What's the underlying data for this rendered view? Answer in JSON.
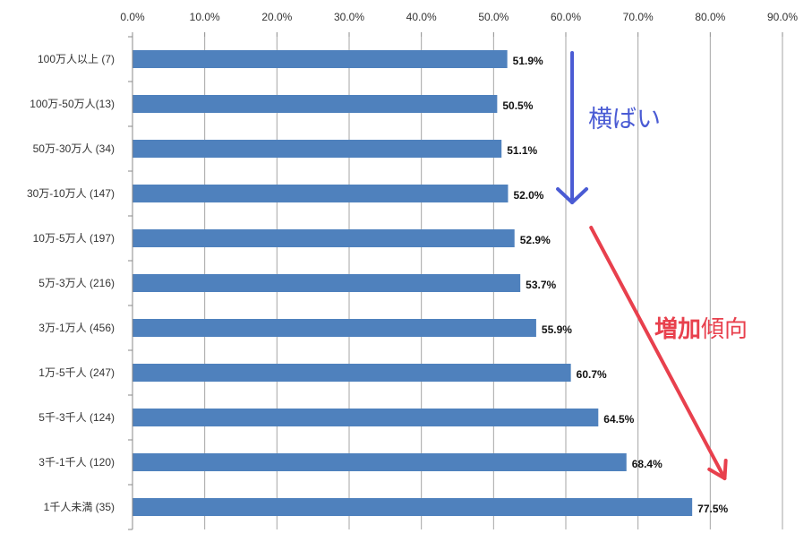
{
  "chart_data": {
    "type": "bar",
    "orientation": "horizontal",
    "title": "",
    "xlabel": "",
    "ylabel": "",
    "xlim": [
      0,
      90
    ],
    "x_ticks": [
      "0.0%",
      "10.0%",
      "20.0%",
      "30.0%",
      "40.0%",
      "50.0%",
      "60.0%",
      "70.0%",
      "80.0%",
      "90.0%"
    ],
    "x_axis_position": "top",
    "grid": true,
    "legend": "none",
    "bar_color": "#4f81bd",
    "categories": [
      "100万人以上 (7)",
      "100万-50万人(13)",
      "50万-30万人 (34)",
      "30万-10万人 (147)",
      "10万-5万人 (197)",
      "5万-3万人 (216)",
      "3万-1万人 (456)",
      "1万-5千人 (247)",
      "5千-3千人 (124)",
      "3千-1千人 (120)",
      "1千人未満 (35)"
    ],
    "values": [
      51.9,
      50.5,
      51.1,
      52.0,
      52.9,
      53.7,
      55.9,
      60.7,
      64.5,
      68.4,
      77.5
    ],
    "data_labels": [
      "51.9%",
      "50.5%",
      "51.1%",
      "52.0%",
      "52.9%",
      "53.7%",
      "55.9%",
      "60.7%",
      "64.5%",
      "68.4%",
      "77.5%"
    ],
    "annotations": [
      {
        "kind": "arrow",
        "color": "#4a5bd4",
        "text_parts": [
          "横ばい"
        ],
        "from_category": 0,
        "to_category": 3,
        "x_value": 61
      },
      {
        "kind": "arrow",
        "color": "#e8404d",
        "text_parts": [
          "増加",
          "傾向"
        ],
        "bold_first": true,
        "from_category": 4,
        "to_category": 9,
        "x_value_start": 63.5,
        "x_value_end": 82
      }
    ]
  }
}
